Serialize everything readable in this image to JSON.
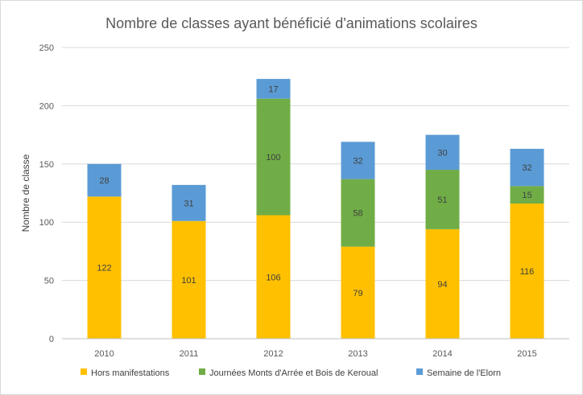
{
  "chart_data": {
    "type": "bar",
    "stacked": true,
    "title": "Nombre de classes ayant bénéficié d'animations scolaires",
    "xlabel": "",
    "ylabel": "Nombre de classe",
    "categories": [
      "2010",
      "2011",
      "2012",
      "2013",
      "2014",
      "2015"
    ],
    "ylim": [
      0,
      250
    ],
    "yticks": [
      0,
      50,
      100,
      150,
      200,
      250
    ],
    "grid": true,
    "legend_position": "bottom",
    "series": [
      {
        "name": "Hors manifestations",
        "color": "#FFC000",
        "values": [
          122,
          101,
          106,
          79,
          94,
          116
        ]
      },
      {
        "name": "Journées Monts d'Arrée et Bois de Keroual",
        "color": "#70AD47",
        "values": [
          null,
          null,
          100,
          58,
          51,
          15
        ]
      },
      {
        "name": "Semaine de l'Elorn",
        "color": "#5B9BD5",
        "values": [
          28,
          31,
          17,
          32,
          30,
          32
        ]
      }
    ]
  }
}
